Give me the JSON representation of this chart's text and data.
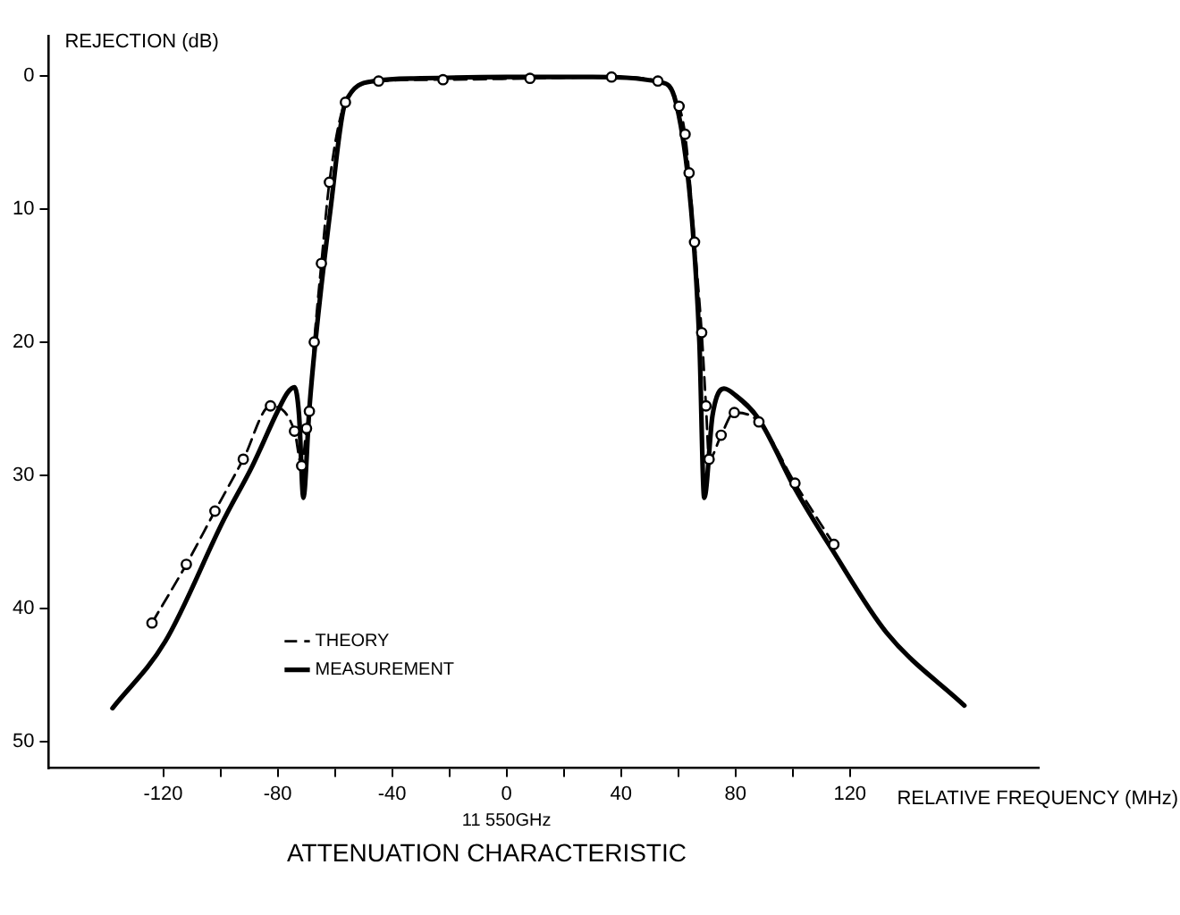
{
  "chart_data": {
    "type": "line",
    "title": "ATTENUATION CHARACTERISTIC",
    "xlabel": "RELATIVE FREQUENCY (MHz)",
    "ylabel": "REJECTION (dB)",
    "annotations": [
      "11 550GHz"
    ],
    "xlim": [
      -160,
      186
    ],
    "ylim": [
      52,
      -3
    ],
    "xticks": [
      -120,
      {
        "value": -100,
        "label": null
      },
      -80,
      {
        "value": -60,
        "label": null
      },
      -40,
      {
        "value": -20,
        "label": null
      },
      0,
      {
        "value": 20,
        "label": null
      },
      40,
      {
        "value": 60,
        "label": null
      },
      80,
      {
        "value": 100,
        "label": null
      },
      120
    ],
    "yticks": [
      0,
      10,
      20,
      30,
      40,
      50
    ],
    "grid": false,
    "legend": "bottom left",
    "series": [
      {
        "name": "THEORY",
        "color": "#000000",
        "marker": "circle",
        "line_style": "dashed",
        "x": [
          -123.9,
          -111.9,
          -101.9,
          -92,
          -82.5,
          -74.1,
          -71.6,
          -69.9,
          -68.9,
          -67.2,
          -64.7,
          -61.9,
          -56.3,
          -44.7,
          -22.2,
          8.2,
          36.7,
          52.9,
          60.3,
          62.4,
          63.8,
          65.7,
          68.2,
          69.7,
          70.8,
          75,
          79.6,
          88.2,
          100.8,
          114.4
        ],
        "values": [
          41.1,
          36.7,
          32.7,
          28.8,
          24.8,
          26.7,
          29.3,
          26.5,
          25.2,
          20,
          14.1,
          8,
          2,
          0.4,
          0.3,
          0.2,
          0.1,
          0.4,
          2.3,
          4.4,
          7.3,
          12.5,
          19.3,
          24.8,
          28.8,
          27,
          25.3,
          26,
          30.6,
          35.2
        ]
      },
      {
        "name": "MEASUREMENT",
        "color": "#000000",
        "marker": "none",
        "line_style": "solid",
        "x": [
          -137.7,
          -119.3,
          -98.7,
          -88.8,
          -80,
          -76.5,
          -74.1,
          -72.5,
          -71,
          -68.9,
          -66.8,
          -61.5,
          -56.3,
          -46,
          -30,
          0,
          30,
          54,
          59.2,
          64.5,
          67.4,
          69.1,
          72,
          76,
          80,
          88.2,
          100.8,
          113.8,
          132.7,
          160
        ],
        "values": [
          47.5,
          42.5,
          33.3,
          29.3,
          25.2,
          23.8,
          23.4,
          25.5,
          31.7,
          25,
          20,
          10,
          2,
          0.4,
          0.2,
          0.1,
          0.1,
          0.5,
          2,
          10,
          20,
          31.7,
          25.5,
          23.5,
          24,
          25.8,
          31,
          35.6,
          41.8,
          47.3
        ]
      }
    ]
  }
}
